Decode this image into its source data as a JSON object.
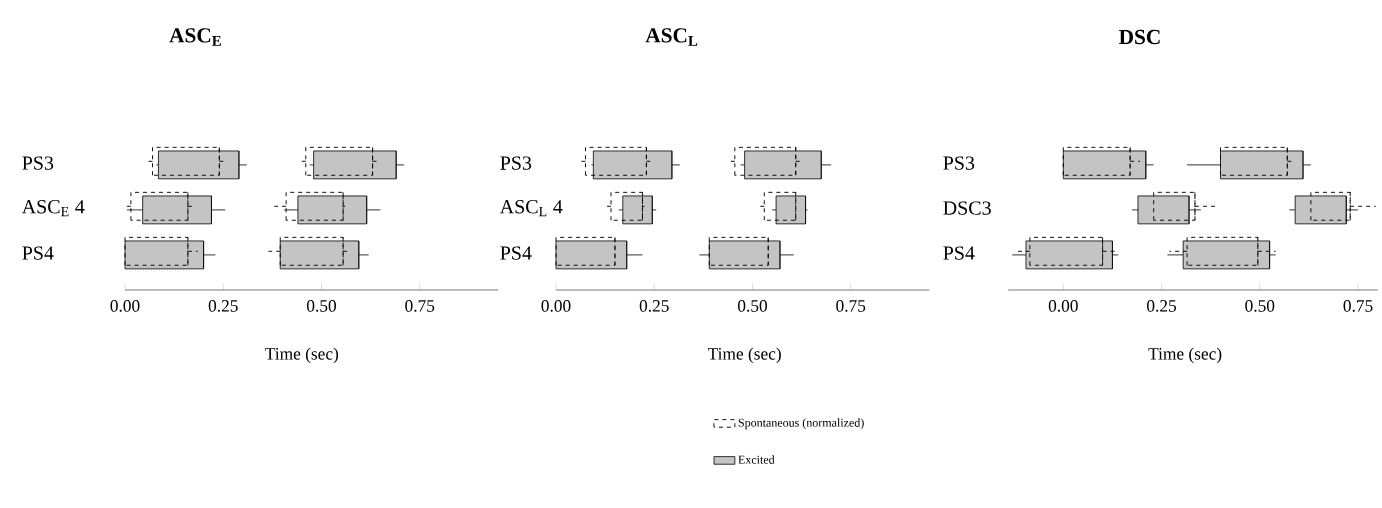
{
  "chart_data": [
    {
      "type": "box",
      "orientation": "horizontal",
      "title": "ASC$_{E}$",
      "xlabel": "Time (sec)",
      "categories": [
        "PS3",
        "ASC$_{E}$ 4",
        "PS4"
      ],
      "xlim": [
        0,
        0.95
      ],
      "xticks": [
        {
          "value": 0,
          "label": "0.00"
        },
        {
          "value": 0.25,
          "label": "0.25"
        },
        {
          "value": 0.5,
          "label": "0.50"
        },
        {
          "value": 0.75,
          "label": "0.75"
        }
      ],
      "series": [
        {
          "color": "#000000",
          "line_style": "dashed",
          "boxes": [
            {
              "low": 0.055,
              "q1": 0.07,
              "median": 0.24,
              "q3": 0.24,
              "high": 0.25
            },
            {
              "low": 0.0,
              "q1": 0.015,
              "median": 0.16,
              "q3": 0.16,
              "high": 0.17
            },
            {
              "low": 0.0,
              "q1": 0.0,
              "median": 0.16,
              "q3": 0.16,
              "high": 0.185
            }
          ]
        },
        {
          "color": "#000000",
          "line_style": "dashed",
          "boxes": [
            {
              "low": 0.45,
              "q1": 0.46,
              "median": 0.63,
              "q3": 0.63,
              "high": 0.64
            },
            {
              "low": 0.38,
              "q1": 0.41,
              "median": 0.555,
              "q3": 0.555,
              "high": 0.56
            },
            {
              "low": 0.365,
              "q1": 0.395,
              "median": 0.555,
              "q3": 0.555,
              "high": 0.575
            }
          ]
        },
        {
          "color": "#c4c4c4",
          "line_style": "solid",
          "boxes": [
            {
              "low": 0.08,
              "q1": 0.085,
              "median": 0.29,
              "q3": 0.29,
              "high": 0.31
            },
            {
              "low": 0.005,
              "q1": 0.045,
              "median": 0.22,
              "q3": 0.22,
              "high": 0.255
            },
            {
              "low": 0.0,
              "q1": 0.0,
              "median": 0.2,
              "q3": 0.2,
              "high": 0.23
            }
          ]
        },
        {
          "color": "#c4c4c4",
          "line_style": "solid",
          "boxes": [
            {
              "low": 0.47,
              "q1": 0.48,
              "median": 0.69,
              "q3": 0.69,
              "high": 0.71
            },
            {
              "low": 0.405,
              "q1": 0.44,
              "median": 0.615,
              "q3": 0.615,
              "high": 0.65
            },
            {
              "low": 0.395,
              "q1": 0.395,
              "median": 0.595,
              "q3": 0.595,
              "high": 0.62
            }
          ]
        }
      ]
    },
    {
      "type": "box",
      "orientation": "horizontal",
      "title": "ASC$_{L}$",
      "xlabel": "Time (sec)",
      "categories": [
        "PS3",
        "ASC$_{L}$ 4",
        "PS4"
      ],
      "xlim": [
        0,
        0.95
      ],
      "xticks": [
        {
          "value": 0,
          "label": "0.00"
        },
        {
          "value": 0.25,
          "label": "0.25"
        },
        {
          "value": 0.5,
          "label": "0.50"
        },
        {
          "value": 0.75,
          "label": "0.75"
        }
      ],
      "legend": "bottom",
      "series": [
        {
          "name": "Spontaneous (normalized)",
          "color": "#000000",
          "line_style": "dashed",
          "boxes": [
            {
              "low": 0.055,
              "q1": 0.075,
              "median": 0.23,
              "q3": 0.23,
              "high": 0.24
            },
            {
              "low": 0.12,
              "q1": 0.14,
              "median": 0.22,
              "q3": 0.22,
              "high": 0.225
            },
            {
              "low": 0.0,
              "q1": 0.0,
              "median": 0.15,
              "q3": 0.15,
              "high": 0.15
            }
          ]
        },
        {
          "color": "#000000",
          "line_style": "dashed",
          "boxes": [
            {
              "low": 0.44,
              "q1": 0.455,
              "median": 0.61,
              "q3": 0.61,
              "high": 0.62
            },
            {
              "low": 0.51,
              "q1": 0.53,
              "median": 0.61,
              "q3": 0.61,
              "high": 0.61
            },
            {
              "low": 0.39,
              "q1": 0.39,
              "median": 0.54,
              "q3": 0.54,
              "high": 0.54
            }
          ]
        },
        {
          "name": "Excited",
          "color": "#c4c4c4",
          "line_style": "solid",
          "boxes": [
            {
              "low": 0.09,
              "q1": 0.095,
              "median": 0.295,
              "q3": 0.295,
              "high": 0.315
            },
            {
              "low": 0.16,
              "q1": 0.17,
              "median": 0.245,
              "q3": 0.245,
              "high": 0.255
            },
            {
              "low": 0.0,
              "q1": 0.0,
              "median": 0.18,
              "q3": 0.18,
              "high": 0.22
            }
          ]
        },
        {
          "color": "#c4c4c4",
          "line_style": "solid",
          "boxes": [
            {
              "low": 0.47,
              "q1": 0.48,
              "median": 0.675,
              "q3": 0.675,
              "high": 0.7
            },
            {
              "low": 0.55,
              "q1": 0.56,
              "median": 0.635,
              "q3": 0.635,
              "high": 0.64
            },
            {
              "low": 0.365,
              "q1": 0.39,
              "median": 0.57,
              "q3": 0.57,
              "high": 0.605
            }
          ]
        }
      ]
    },
    {
      "type": "box",
      "orientation": "horizontal",
      "title": "DSC",
      "xlabel": "Time (sec)",
      "categories": [
        "PS3",
        "DSC3",
        "PS4"
      ],
      "xlim": [
        -0.14,
        0.8
      ],
      "xticks": [
        {
          "value": 0,
          "label": "0.00"
        },
        {
          "value": 0.25,
          "label": "0.25"
        },
        {
          "value": 0.5,
          "label": "0.50"
        },
        {
          "value": 0.75,
          "label": "0.75"
        }
      ],
      "series": [
        {
          "color": "#000000",
          "line_style": "dashed",
          "boxes": [
            {
              "low": 0.0,
              "q1": 0.0,
              "median": 0.17,
              "q3": 0.17,
              "high": 0.195
            },
            {
              "low": 0.23,
              "q1": 0.23,
              "median": 0.335,
              "q3": 0.335,
              "high": 0.395
            },
            {
              "low": -0.125,
              "q1": -0.085,
              "median": 0.1,
              "q3": 0.1,
              "high": 0.135
            }
          ]
        },
        {
          "color": "#000000",
          "line_style": "dashed",
          "boxes": [
            {
              "low": 0.4,
              "q1": 0.4,
              "median": 0.57,
              "q3": 0.57,
              "high": 0.59
            },
            {
              "low": 0.63,
              "q1": 0.63,
              "median": 0.73,
              "q3": 0.73,
              "high": 0.795
            },
            {
              "low": 0.27,
              "q1": 0.315,
              "median": 0.495,
              "q3": 0.495,
              "high": 0.54
            }
          ]
        },
        {
          "color": "#c4c4c4",
          "line_style": "solid",
          "boxes": [
            {
              "low": 0.0,
              "q1": 0.0,
              "median": 0.21,
              "q3": 0.21,
              "high": 0.23
            },
            {
              "low": 0.175,
              "q1": 0.19,
              "median": 0.32,
              "q3": 0.32,
              "high": 0.35
            },
            {
              "low": -0.13,
              "q1": -0.095,
              "median": 0.125,
              "q3": 0.125,
              "high": 0.14
            }
          ]
        },
        {
          "color": "#c4c4c4",
          "line_style": "solid",
          "boxes": [
            {
              "low": 0.315,
              "q1": 0.4,
              "median": 0.61,
              "q3": 0.61,
              "high": 0.63
            },
            {
              "low": 0.575,
              "q1": 0.59,
              "median": 0.72,
              "q3": 0.72,
              "high": 0.75
            },
            {
              "low": 0.265,
              "q1": 0.305,
              "median": 0.525,
              "q3": 0.525,
              "high": 0.54
            }
          ]
        }
      ]
    }
  ]
}
